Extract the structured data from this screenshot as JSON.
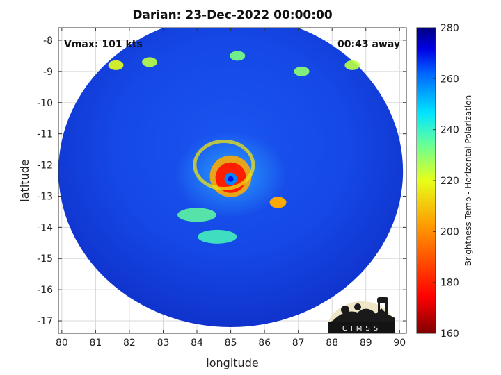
{
  "chart_data": {
    "type": "heatmap",
    "title": "Darian: 23-Dec-2022 00:00:00",
    "xlabel": "longitude",
    "ylabel": "latitude",
    "xlim": [
      79.9,
      90.2
    ],
    "ylim": [
      -17.4,
      -7.6
    ],
    "xticks": [
      80,
      81,
      82,
      83,
      84,
      85,
      86,
      87,
      88,
      89,
      90
    ],
    "yticks": [
      -8,
      -9,
      -10,
      -11,
      -12,
      -13,
      -14,
      -15,
      -16,
      -17
    ],
    "grid": true,
    "annotations": {
      "vmax": "Vmax: 101 kts",
      "time_away": "00:43 away"
    },
    "colorbar": {
      "label": "Brightness Temp - Horizontal Polarization",
      "min": 160,
      "max": 280,
      "ticks": [
        160,
        180,
        200,
        220,
        240,
        260,
        280
      ]
    },
    "swath": {
      "center_lon": 85.0,
      "center_lat": -12.2,
      "radius_lon": 5.1,
      "radius_lat": 5.0
    },
    "eye": {
      "lon": 85.0,
      "lat": -12.45,
      "value": 258
    },
    "features": [
      {
        "name": "eyewall",
        "lon": 85.0,
        "lat": -12.4,
        "value": 180
      },
      {
        "name": "inner band",
        "lon": 84.8,
        "lat": -12.0,
        "value": 215
      },
      {
        "name": "convective cell",
        "lon": 86.4,
        "lat": -13.2,
        "value": 205
      },
      {
        "name": "cell",
        "lon": 81.6,
        "lat": -8.8,
        "value": 220
      },
      {
        "name": "cell",
        "lon": 82.6,
        "lat": -8.7,
        "value": 225
      },
      {
        "name": "cell",
        "lon": 85.2,
        "lat": -8.5,
        "value": 232
      },
      {
        "name": "cell",
        "lon": 87.1,
        "lat": -9.0,
        "value": 230
      },
      {
        "name": "cell",
        "lon": 88.6,
        "lat": -8.8,
        "value": 225
      },
      {
        "name": "band",
        "lon": 84.0,
        "lat": -13.6,
        "value": 235
      },
      {
        "name": "band",
        "lon": 84.6,
        "lat": -14.3,
        "value": 238
      }
    ]
  },
  "logo": {
    "text": "CIMSS"
  }
}
